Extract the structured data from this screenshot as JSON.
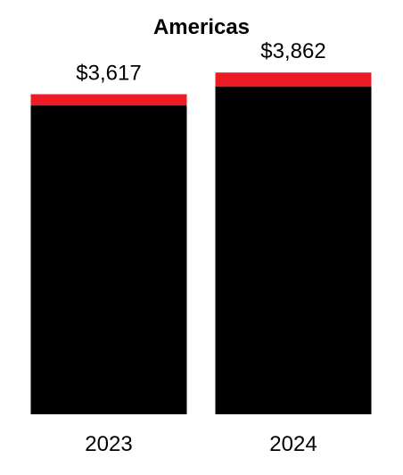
{
  "chart_data": {
    "type": "bar",
    "stacked": true,
    "title": "Americas",
    "categories": [
      "2023",
      "2024"
    ],
    "total_labels": [
      "$3,617",
      "$3,862"
    ],
    "totals": [
      3617,
      3862
    ],
    "series": [
      {
        "color": "#000000",
        "values": [
          3490,
          3706
        ]
      },
      {
        "color": "#ed1c24",
        "values": [
          127,
          156
        ]
      }
    ],
    "ylim": [
      0,
      4500
    ],
    "grid": false,
    "legend": "none"
  }
}
